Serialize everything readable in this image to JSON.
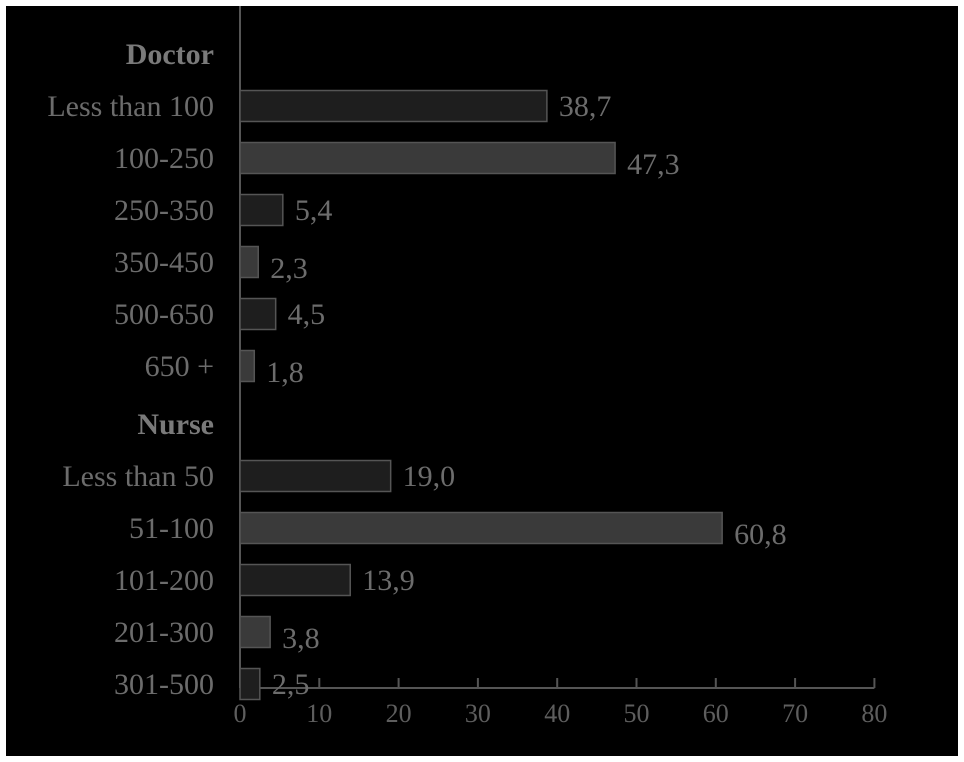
{
  "chart_data": {
    "type": "bar",
    "orientation": "horizontal",
    "groups": [
      {
        "name": "Doctor",
        "categories": [
          "Less than 100",
          "100-250",
          "250-350",
          "350-450",
          "500-650",
          "650 +"
        ],
        "values": [
          38.7,
          47.3,
          5.4,
          2.3,
          4.5,
          1.8
        ],
        "value_labels": [
          "38,7",
          "47,3",
          "5,4",
          "2,3",
          "4,5",
          "1,8"
        ]
      },
      {
        "name": "Nurse",
        "categories": [
          "Less than 50",
          "51-100",
          "101-200",
          "201-300",
          "301-500"
        ],
        "values": [
          19.0,
          60.8,
          13.9,
          3.8,
          2.5
        ],
        "value_labels": [
          "19,0",
          "60,8",
          "13,9",
          "3,8",
          "2,5"
        ]
      }
    ],
    "xlim": [
      0,
      80
    ],
    "xticks": [
      0,
      10,
      20,
      30,
      40,
      50,
      60,
      70,
      80
    ],
    "xtick_labels": [
      "0",
      "10",
      "20",
      "30",
      "40",
      "50",
      "60",
      "70",
      "80"
    ],
    "grid": false,
    "colors": {
      "background": "#000000",
      "bar_fill_alt": "#3a3a3a",
      "bar_fill": "#1e1e1e",
      "bar_stroke": "#555555",
      "text": "#6c6c6c",
      "axis": "#555555"
    }
  }
}
